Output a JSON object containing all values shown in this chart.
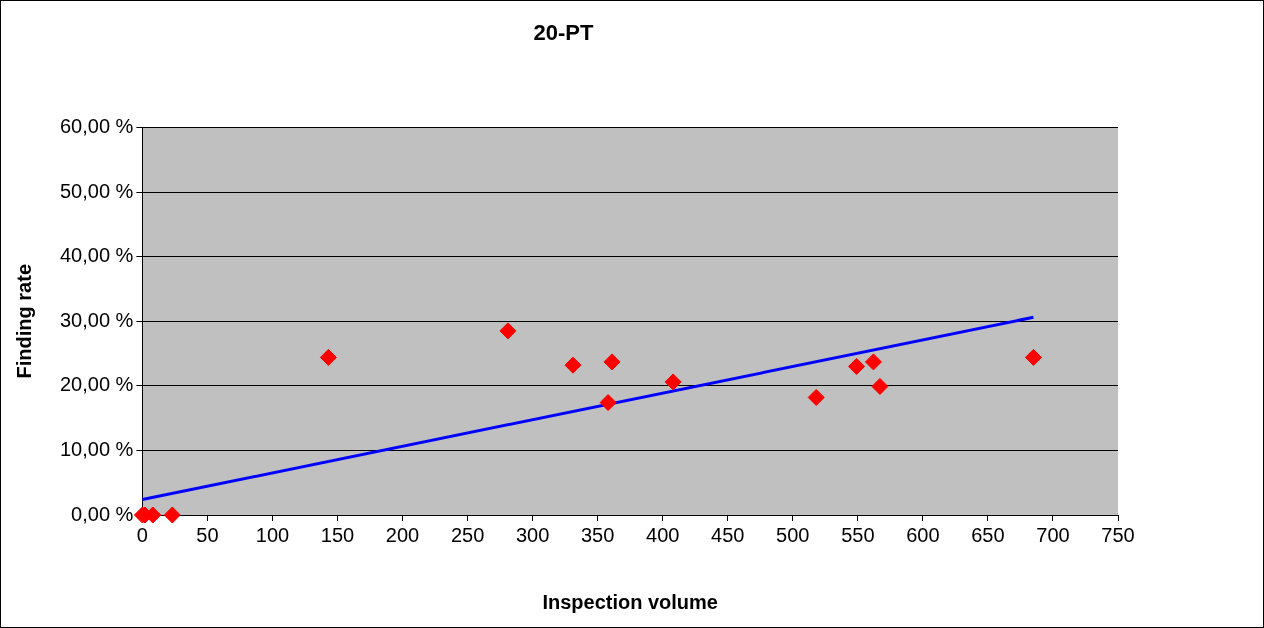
{
  "chart_data": {
    "type": "scatter",
    "title": "20-PT",
    "xlabel": "Inspection volume",
    "ylabel": "Finding rate",
    "xlim": [
      0,
      750
    ],
    "xticks": [
      0,
      50,
      100,
      150,
      200,
      250,
      300,
      350,
      400,
      450,
      500,
      550,
      600,
      650,
      700,
      750
    ],
    "ylim": [
      0,
      60
    ],
    "yticks": [
      {
        "value": 0,
        "label": "0,00 %"
      },
      {
        "value": 10,
        "label": "10,00 %"
      },
      {
        "value": 20,
        "label": "20,00 %"
      },
      {
        "value": 30,
        "label": "30,00 %"
      },
      {
        "value": 40,
        "label": "40,00 %"
      },
      {
        "value": 50,
        "label": "50,00 %"
      },
      {
        "value": 60,
        "label": "60,00 %"
      }
    ],
    "grid": "y",
    "legend": false,
    "marker": "diamond",
    "series": [
      {
        "color": "#ff0000",
        "x": [
          0,
          2,
          8,
          23,
          143,
          281,
          331,
          358,
          361,
          408,
          518,
          549,
          562,
          567,
          685
        ],
        "values": [
          0,
          0,
          0,
          0,
          24.4,
          28.5,
          23.2,
          17.4,
          23.7,
          20.6,
          18.2,
          23.0,
          23.7,
          19.9,
          24.4
        ]
      },
      {
        "type": "line",
        "color": "#0000ff",
        "marker": "none",
        "line_style": "solid",
        "x": [
          0,
          685
        ],
        "values": [
          2.4,
          30.6
        ]
      }
    ]
  }
}
